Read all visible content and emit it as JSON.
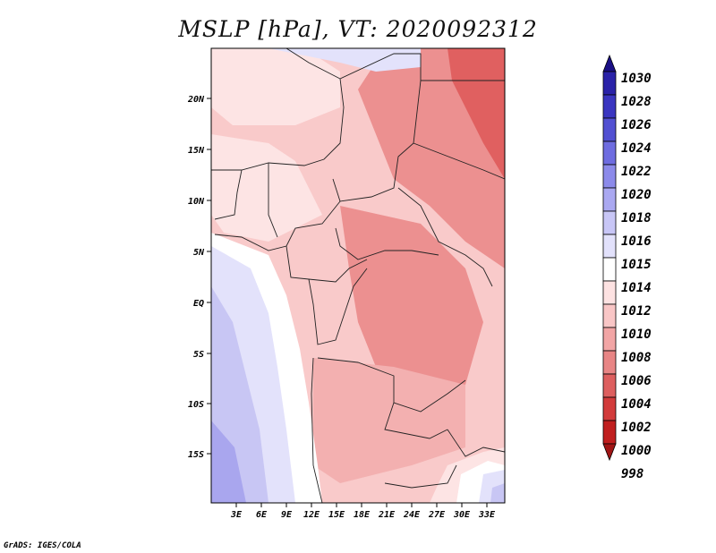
{
  "title": "MSLP [hPa], VT: 2020092312",
  "credit": "GrADS: IGES/COLA",
  "lat_labels": [
    "20N",
    "15N",
    "10N",
    "5N",
    "EQ",
    "5S",
    "10S",
    "15S"
  ],
  "lon_labels": [
    "3E",
    "6E",
    "9E",
    "12E",
    "15E",
    "18E",
    "21E",
    "24E",
    "27E",
    "30E",
    "33E"
  ],
  "colorbar": {
    "levels": [
      "1030",
      "1028",
      "1026",
      "1024",
      "1022",
      "1020",
      "1018",
      "1016",
      "1015",
      "1014",
      "1012",
      "1010",
      "1008",
      "1006",
      "1004",
      "1002",
      "1000",
      "998"
    ],
    "colors": [
      "#1a0f85",
      "#2a22a8",
      "#3a35c0",
      "#5250d2",
      "#6e6ce0",
      "#8c8aea",
      "#aaa8f1",
      "#c8c6f6",
      "#e2e1fb",
      "#ffffff",
      "#fde2e2",
      "#f9c6c6",
      "#f2a5a5",
      "#e88585",
      "#dd5f5f",
      "#d23b3b",
      "#c01f1f",
      "#a01515"
    ]
  },
  "map_colors": {
    "very_light_pink": "#fde4e4",
    "light_pink": "#f9caca",
    "pink": "#f3b0b0",
    "salmon": "#ec9090",
    "red": "#e06060",
    "white": "#ffffff",
    "light_lav": "#e3e2fb",
    "lav": "#c8c6f4",
    "purple": "#a9a6ee"
  }
}
